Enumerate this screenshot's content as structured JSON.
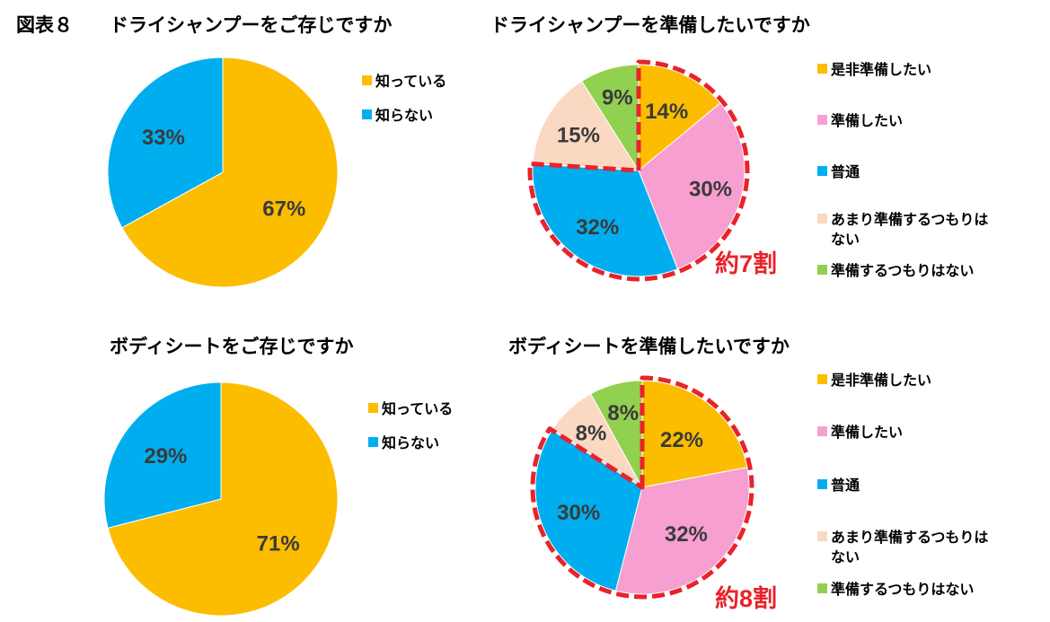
{
  "figure_label": "図表８",
  "colors": {
    "yellow": "#fcbd00",
    "blue": "#00aeef",
    "pink": "#f79fd0",
    "peach": "#fbd8c2",
    "green": "#92d050",
    "highlight": "#e8232a"
  },
  "chart_data": [
    {
      "type": "pie",
      "title": "ドライシャンプーをご存じですか",
      "labels": [
        "知っている",
        "知らない"
      ],
      "values": [
        67,
        33
      ],
      "value_labels": [
        "67%",
        "33%"
      ],
      "colors": [
        "#fcbd00",
        "#00aeef"
      ],
      "legend": "right"
    },
    {
      "type": "pie",
      "title": "ドライシャンプーを準備したいですか",
      "labels": [
        "是非準備したい",
        "準備したい",
        "普通",
        "あまり準備するつもりはない",
        "準備するつもりはない"
      ],
      "legend_text": [
        "是非準備したい",
        "準備したい",
        "普通",
        "あまり準備するつもりは\nない",
        "準備するつもりはない"
      ],
      "values": [
        14,
        30,
        32,
        15,
        9
      ],
      "value_labels": [
        "14%",
        "30%",
        "32%",
        "15%",
        "9%"
      ],
      "colors": [
        "#fcbd00",
        "#f79fd0",
        "#00aeef",
        "#fbd8c2",
        "#92d050"
      ],
      "highlight_slices": 3,
      "callout": "約7割",
      "legend": "right"
    },
    {
      "type": "pie",
      "title": "ボディシートをご存じですか",
      "labels": [
        "知っている",
        "知らない"
      ],
      "values": [
        71,
        29
      ],
      "value_labels": [
        "71%",
        "29%"
      ],
      "colors": [
        "#fcbd00",
        "#00aeef"
      ],
      "legend": "right"
    },
    {
      "type": "pie",
      "title": "ボディシートを準備したいですか",
      "labels": [
        "是非準備したい",
        "準備したい",
        "普通",
        "あまり準備するつもりはない",
        "準備するつもりはない"
      ],
      "legend_text": [
        "是非準備したい",
        "準備したい",
        "普通",
        "あまり準備するつもりは\nない",
        "準備するつもりはない"
      ],
      "values": [
        22,
        32,
        30,
        8,
        8
      ],
      "value_labels": [
        "22%",
        "32%",
        "30%",
        "8%",
        "8%"
      ],
      "colors": [
        "#fcbd00",
        "#f79fd0",
        "#00aeef",
        "#fbd8c2",
        "#92d050"
      ],
      "highlight_slices": 3,
      "callout": "約8割",
      "legend": "right"
    }
  ]
}
